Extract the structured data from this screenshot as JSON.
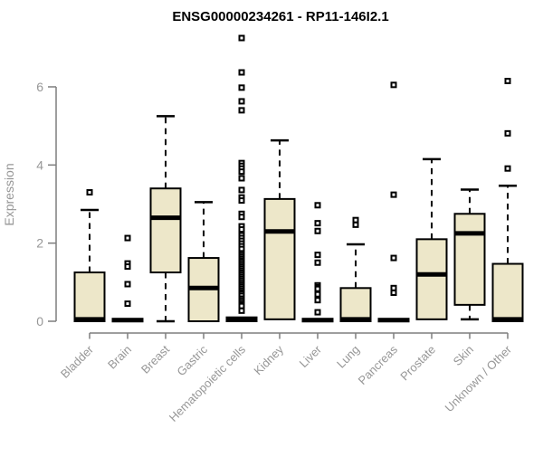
{
  "chart_data": {
    "type": "boxplot",
    "title": "ENSG00000234261 - RP11-146I2.1",
    "xlabel": "",
    "ylabel": "Expression",
    "ylim": [
      0,
      7.5
    ],
    "yticks": [
      0,
      2,
      4,
      6
    ],
    "grid": false,
    "legend": "none",
    "categories": [
      "Bladder",
      "Brain",
      "Breast",
      "Gastric",
      "Hematopoietic cells",
      "Kidney",
      "Liver",
      "Lung",
      "Pancreas",
      "Prostate",
      "Skin",
      "Unknown / Other"
    ],
    "boxes": [
      {
        "category": "Bladder",
        "q1": 0,
        "median": 0.05,
        "q3": 1.25,
        "whisker_low": 0,
        "whisker_high": 2.85,
        "outliers": [
          3.3
        ]
      },
      {
        "category": "Brain",
        "q1": 0,
        "median": 0.03,
        "q3": 0.06,
        "whisker_low": 0,
        "whisker_high": 0.06,
        "outliers": [
          2.13,
          1.48,
          1.4,
          0.95,
          0.45
        ]
      },
      {
        "category": "Breast",
        "q1": 1.25,
        "median": 2.65,
        "q3": 3.4,
        "whisker_low": 0,
        "whisker_high": 5.25,
        "outliers": []
      },
      {
        "category": "Gastric",
        "q1": 0,
        "median": 0.85,
        "q3": 1.62,
        "whisker_low": 0,
        "whisker_high": 3.05,
        "outliers": []
      },
      {
        "category": "Hematopoietic cells",
        "q1": 0,
        "median": 0.05,
        "q3": 0.1,
        "whisker_low": 0,
        "whisker_high": 0.1,
        "outliers": [
          7.25,
          6.37,
          5.98,
          5.63,
          5.4,
          4.05,
          3.98,
          3.91,
          3.83,
          3.66,
          3.36,
          3.17,
          3.09,
          2.75,
          2.67,
          2.43,
          2.35,
          2.2,
          2.13,
          2.06,
          1.99,
          1.92,
          1.85,
          1.74,
          1.69,
          1.64,
          1.59,
          1.54,
          1.49,
          1.44,
          1.39,
          1.34,
          1.29,
          1.24,
          1.19,
          1.14,
          1.09,
          1.04,
          0.99,
          0.94,
          0.89,
          0.84,
          0.79,
          0.74,
          0.7,
          0.65,
          0.58,
          0.53,
          0.48,
          0.43,
          0.39,
          0.27
        ]
      },
      {
        "category": "Kidney",
        "q1": 0.05,
        "median": 2.3,
        "q3": 3.13,
        "whisker_low": 0.05,
        "whisker_high": 4.63,
        "outliers": []
      },
      {
        "category": "Liver",
        "q1": 0,
        "median": 0.03,
        "q3": 0.06,
        "whisker_low": 0,
        "whisker_high": 0.06,
        "outliers": [
          2.97,
          2.51,
          2.31,
          1.7,
          1.5,
          0.92,
          0.87,
          0.83,
          0.69,
          0.54,
          0.23
        ]
      },
      {
        "category": "Lung",
        "q1": 0,
        "median": 0.05,
        "q3": 0.85,
        "whisker_low": 0,
        "whisker_high": 1.97,
        "outliers": [
          2.59,
          2.47
        ]
      },
      {
        "category": "Pancreas",
        "q1": 0,
        "median": 0.03,
        "q3": 0.06,
        "whisker_low": 0,
        "whisker_high": 0.06,
        "outliers": [
          6.05,
          3.24,
          1.62,
          0.85,
          0.73
        ]
      },
      {
        "category": "Prostate",
        "q1": 0.05,
        "median": 1.2,
        "q3": 2.1,
        "whisker_low": 0.05,
        "whisker_high": 4.15,
        "outliers": []
      },
      {
        "category": "Skin",
        "q1": 0.42,
        "median": 2.25,
        "q3": 2.75,
        "whisker_low": 0.05,
        "whisker_high": 3.37,
        "outliers": []
      },
      {
        "category": "Unknown / Other",
        "q1": 0,
        "median": 0.05,
        "q3": 1.47,
        "whisker_low": 0,
        "whisker_high": 3.47,
        "outliers": [
          6.15,
          4.81,
          3.91
        ]
      }
    ],
    "colors": {
      "box_fill": "#EDE7C9",
      "box_border": "#000000",
      "median": "#000000",
      "whisker": "#000000",
      "axis": "#7E7E7E",
      "tick_label": "#979797",
      "title": "#000000",
      "background": "#FFFFFF"
    }
  }
}
